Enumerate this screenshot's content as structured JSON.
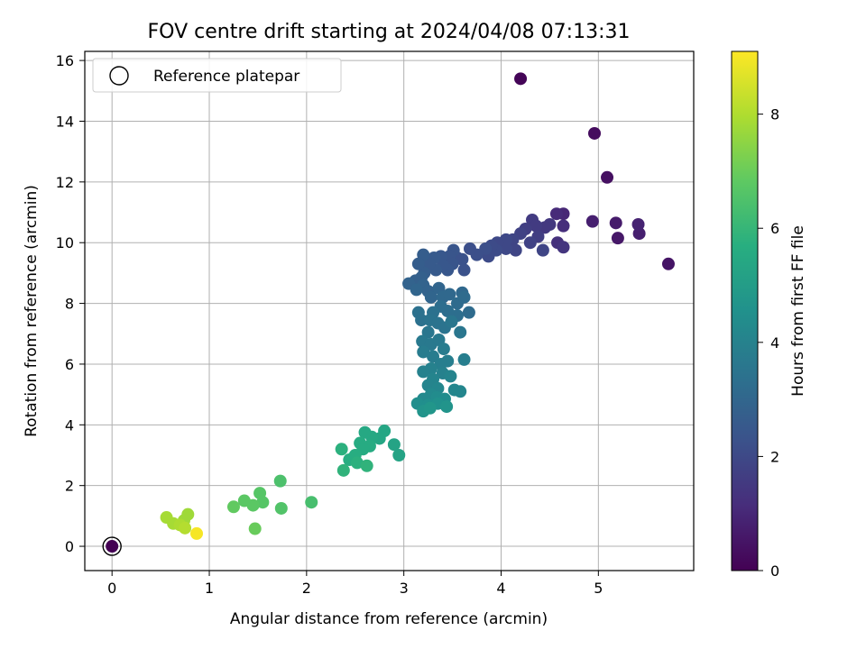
{
  "chart_data": {
    "type": "scatter",
    "title": "FOV centre drift starting at 2024/04/08 07:13:31",
    "xlabel": "Angular distance from reference (arcmin)",
    "ylabel": "Rotation from reference (arcmin)",
    "xlim": [
      -0.28,
      5.98
    ],
    "ylim": [
      -0.8,
      16.3
    ],
    "xticks": [
      0,
      1,
      2,
      3,
      4,
      5
    ],
    "yticks": [
      0,
      2,
      4,
      6,
      8,
      10,
      12,
      14,
      16
    ],
    "grid": true,
    "legend": {
      "placement": "top-left",
      "label": "Reference platepar"
    },
    "reference_point": {
      "x": 0,
      "y": 0
    },
    "colorbar": {
      "label": "Hours from first FF file",
      "colormap": "viridis",
      "range": [
        0,
        9.1
      ],
      "ticks": [
        0,
        2,
        4,
        6,
        8
      ]
    },
    "points": [
      [
        4.2,
        15.4,
        0.1
      ],
      [
        4.96,
        13.6,
        0.3
      ],
      [
        5.09,
        12.15,
        0.4
      ],
      [
        5.72,
        9.3,
        0.5
      ],
      [
        5.2,
        10.15,
        0.6
      ],
      [
        5.18,
        10.65,
        0.7
      ],
      [
        5.42,
        10.3,
        0.8
      ],
      [
        5.41,
        10.6,
        0.9
      ],
      [
        4.94,
        10.7,
        0.8
      ],
      [
        4.64,
        10.95,
        1.0
      ],
      [
        4.57,
        10.95,
        1.1
      ],
      [
        4.64,
        10.55,
        1.2
      ],
      [
        4.58,
        10.0,
        1.3
      ],
      [
        4.64,
        9.85,
        1.4
      ],
      [
        4.5,
        10.6,
        1.5
      ],
      [
        4.45,
        10.5,
        1.5
      ],
      [
        4.32,
        10.75,
        1.6
      ],
      [
        4.36,
        10.55,
        1.6
      ],
      [
        4.25,
        10.45,
        1.7
      ],
      [
        4.38,
        10.2,
        1.7
      ],
      [
        4.2,
        10.3,
        1.8
      ],
      [
        4.3,
        10.0,
        1.8
      ],
      [
        4.43,
        9.75,
        1.9
      ],
      [
        4.12,
        10.1,
        1.9
      ],
      [
        4.15,
        9.75,
        1.9
      ],
      [
        4.05,
        10.1,
        2.0
      ],
      [
        4.05,
        9.8,
        2.0
      ],
      [
        3.96,
        10.0,
        2.0
      ],
      [
        3.95,
        9.75,
        2.1
      ],
      [
        3.9,
        9.9,
        2.1
      ],
      [
        3.87,
        9.55,
        2.1
      ],
      [
        3.84,
        9.8,
        2.2
      ],
      [
        3.75,
        9.6,
        2.2
      ],
      [
        3.68,
        9.8,
        2.2
      ],
      [
        3.6,
        9.45,
        2.3
      ],
      [
        3.62,
        9.1,
        2.3
      ],
      [
        3.55,
        9.5,
        2.3
      ],
      [
        3.51,
        9.75,
        2.4
      ],
      [
        3.47,
        9.55,
        2.4
      ],
      [
        3.5,
        9.3,
        2.4
      ],
      [
        3.45,
        9.1,
        2.5
      ],
      [
        3.38,
        9.55,
        2.5
      ],
      [
        3.4,
        9.25,
        2.5
      ],
      [
        3.31,
        9.5,
        2.6
      ],
      [
        3.33,
        9.1,
        2.6
      ],
      [
        3.26,
        9.3,
        2.6
      ],
      [
        3.2,
        9.6,
        2.7
      ],
      [
        3.21,
        9.0,
        2.7
      ],
      [
        3.15,
        9.3,
        2.7
      ],
      [
        3.18,
        8.85,
        2.8
      ],
      [
        3.12,
        8.75,
        2.8
      ],
      [
        3.2,
        8.6,
        2.9
      ],
      [
        3.05,
        8.65,
        2.9
      ],
      [
        3.25,
        8.4,
        2.9
      ],
      [
        3.13,
        8.45,
        3.0
      ],
      [
        3.28,
        8.2,
        3.0
      ],
      [
        3.36,
        8.5,
        3.0
      ],
      [
        3.4,
        8.2,
        3.1
      ],
      [
        3.47,
        8.3,
        3.1
      ],
      [
        3.6,
        8.35,
        3.1
      ],
      [
        3.55,
        8.0,
        3.2
      ],
      [
        3.62,
        8.2,
        3.2
      ],
      [
        3.67,
        7.7,
        3.2
      ],
      [
        3.55,
        7.6,
        3.3
      ],
      [
        3.45,
        7.75,
        3.3
      ],
      [
        3.38,
        7.9,
        3.3
      ],
      [
        3.3,
        7.7,
        3.4
      ],
      [
        3.15,
        7.7,
        3.4
      ],
      [
        3.18,
        7.45,
        3.4
      ],
      [
        3.27,
        7.45,
        3.5
      ],
      [
        3.35,
        7.35,
        3.5
      ],
      [
        3.42,
        7.2,
        3.5
      ],
      [
        3.49,
        7.4,
        3.6
      ],
      [
        3.58,
        7.05,
        3.6
      ],
      [
        3.25,
        7.05,
        3.6
      ],
      [
        3.19,
        6.75,
        3.7
      ],
      [
        3.28,
        6.65,
        3.7
      ],
      [
        3.36,
        6.8,
        3.7
      ],
      [
        3.41,
        6.5,
        3.8
      ],
      [
        3.2,
        6.4,
        3.8
      ],
      [
        3.3,
        6.25,
        3.8
      ],
      [
        3.45,
        6.1,
        3.9
      ],
      [
        3.38,
        6.0,
        3.9
      ],
      [
        3.62,
        6.15,
        3.9
      ],
      [
        3.28,
        5.85,
        4.0
      ],
      [
        3.2,
        5.75,
        4.0
      ],
      [
        3.4,
        5.7,
        4.0
      ],
      [
        3.48,
        5.6,
        4.1
      ],
      [
        3.3,
        5.5,
        4.1
      ],
      [
        3.25,
        5.3,
        4.1
      ],
      [
        3.35,
        5.2,
        4.2
      ],
      [
        3.52,
        5.15,
        4.2
      ],
      [
        3.58,
        5.1,
        4.2
      ],
      [
        3.28,
        5.0,
        4.3
      ],
      [
        3.2,
        4.85,
        4.3
      ],
      [
        3.34,
        4.9,
        4.4
      ],
      [
        3.42,
        4.85,
        4.4
      ],
      [
        3.14,
        4.7,
        4.5
      ],
      [
        3.25,
        4.65,
        4.5
      ],
      [
        3.35,
        4.7,
        4.6
      ],
      [
        3.44,
        4.6,
        4.7
      ],
      [
        3.2,
        4.45,
        4.7
      ],
      [
        3.27,
        4.55,
        4.8
      ],
      [
        2.95,
        3.0,
        5.3
      ],
      [
        2.9,
        3.35,
        5.3
      ],
      [
        2.8,
        3.8,
        5.4
      ],
      [
        2.75,
        3.55,
        5.4
      ],
      [
        2.67,
        3.6,
        5.5
      ],
      [
        2.6,
        3.75,
        5.5
      ],
      [
        2.65,
        3.3,
        5.6
      ],
      [
        2.55,
        3.4,
        5.6
      ],
      [
        2.58,
        3.2,
        5.6
      ],
      [
        2.5,
        3.0,
        5.7
      ],
      [
        2.44,
        2.85,
        5.7
      ],
      [
        2.52,
        2.75,
        5.8
      ],
      [
        2.36,
        3.2,
        5.8
      ],
      [
        2.38,
        2.5,
        5.9
      ],
      [
        2.62,
        2.65,
        5.9
      ],
      [
        2.05,
        1.45,
        6.4
      ],
      [
        1.73,
        2.15,
        6.5
      ],
      [
        1.74,
        1.25,
        6.6
      ],
      [
        1.52,
        1.75,
        6.7
      ],
      [
        1.55,
        1.45,
        6.7
      ],
      [
        1.45,
        1.35,
        6.8
      ],
      [
        1.36,
        1.5,
        6.8
      ],
      [
        1.25,
        1.3,
        6.9
      ],
      [
        1.47,
        0.58,
        7.0
      ],
      [
        0.78,
        1.05,
        7.8
      ],
      [
        0.74,
        0.85,
        7.8
      ],
      [
        0.56,
        0.95,
        7.9
      ],
      [
        0.63,
        0.75,
        7.9
      ],
      [
        0.7,
        0.7,
        8.0
      ],
      [
        0.75,
        0.6,
        8.1
      ],
      [
        0.87,
        0.42,
        9.0
      ],
      [
        0.0,
        0.0,
        0.0
      ]
    ]
  }
}
